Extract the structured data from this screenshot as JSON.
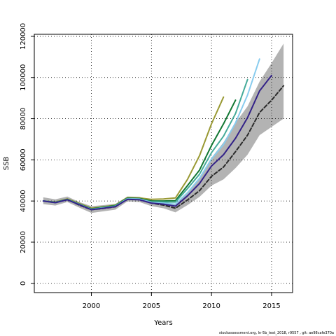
{
  "chart_data": {
    "type": "line",
    "xlabel": "Years",
    "ylabel": "SSB",
    "xlim": [
      1995.25,
      2016.75
    ],
    "ylim": [
      -4500,
      121000
    ],
    "x_ticks": [
      2000,
      2005,
      2010,
      2015
    ],
    "y_ticks": [
      0,
      20000,
      40000,
      60000,
      80000,
      100000,
      120000
    ],
    "x_tick_labels": [
      "2000",
      "2005",
      "2010",
      "2015"
    ],
    "y_tick_labels": [
      "0",
      "20000",
      "40000",
      "60000",
      "80000",
      "100000",
      "120000"
    ],
    "grid": true,
    "band": {
      "color": "#b3b3b3",
      "x": [
        1996,
        1997,
        1998,
        1999,
        2000,
        2001,
        2002,
        2003,
        2004,
        2005,
        2006,
        2007,
        2008,
        2009,
        2010,
        2011,
        2012,
        2013,
        2014,
        2015,
        2016
      ],
      "lower": [
        38500,
        37800,
        39500,
        36800,
        34200,
        35000,
        35800,
        39800,
        39500,
        37500,
        36500,
        34500,
        38000,
        42000,
        47500,
        50500,
        56000,
        62500,
        72000,
        76000,
        80000
      ],
      "upper": [
        41800,
        40800,
        42200,
        39500,
        37500,
        38000,
        38600,
        42200,
        42000,
        40500,
        39500,
        38500,
        44000,
        51500,
        61000,
        68500,
        78000,
        86000,
        98000,
        107000,
        116500
      ]
    },
    "series": [
      {
        "color": "#2a2a2a",
        "dash": true,
        "x": [
          1996,
          1997,
          1998,
          1999,
          2000,
          2001,
          2002,
          2003,
          2004,
          2005,
          2006,
          2007,
          2008,
          2009,
          2010,
          2011,
          2012,
          2013,
          2014,
          2015,
          2016
        ],
        "values": [
          40000,
          39200,
          40800,
          38000,
          35800,
          36400,
          37200,
          41000,
          40700,
          39000,
          38000,
          36500,
          40500,
          45000,
          52000,
          56500,
          64000,
          72000,
          83000,
          89000,
          96000
        ]
      },
      {
        "color": "#999933",
        "x": [
          1996,
          1997,
          1998,
          1999,
          2000,
          2001,
          2002,
          2003,
          2004,
          2005,
          2006,
          2007,
          2008,
          2009,
          2010,
          2011
        ],
        "values": [
          40000,
          39500,
          41000,
          38800,
          36500,
          37200,
          38000,
          41700,
          41500,
          40800,
          41000,
          41500,
          50500,
          62000,
          77500,
          90500
        ]
      },
      {
        "color": "#117733",
        "x": [
          1996,
          1997,
          1998,
          1999,
          2000,
          2001,
          2002,
          2003,
          2004,
          2005,
          2006,
          2007,
          2008,
          2009,
          2010,
          2011,
          2012
        ],
        "values": [
          40000,
          39400,
          40800,
          38500,
          36200,
          37000,
          37800,
          41400,
          41200,
          40000,
          40000,
          40200,
          47500,
          55000,
          67000,
          77500,
          89000
        ]
      },
      {
        "color": "#44aa99",
        "x": [
          1996,
          1997,
          1998,
          1999,
          2000,
          2001,
          2002,
          2003,
          2004,
          2005,
          2006,
          2007,
          2008,
          2009,
          2010,
          2011,
          2012,
          2013
        ],
        "values": [
          40000,
          39300,
          40700,
          38400,
          36000,
          36800,
          37600,
          41200,
          41000,
          39600,
          39500,
          39500,
          46000,
          53000,
          63500,
          71500,
          82500,
          99000
        ]
      },
      {
        "color": "#88ccee",
        "x": [
          1996,
          1997,
          1998,
          1999,
          2000,
          2001,
          2002,
          2003,
          2004,
          2005,
          2006,
          2007,
          2008,
          2009,
          2010,
          2011,
          2012,
          2013,
          2014
        ],
        "values": [
          40000,
          39200,
          40600,
          38300,
          35900,
          36600,
          37400,
          41000,
          40900,
          39300,
          39000,
          38500,
          44000,
          51000,
          60500,
          67500,
          78000,
          91500,
          109000
        ]
      },
      {
        "color": "#332288",
        "x": [
          1996,
          1997,
          1998,
          1999,
          2000,
          2001,
          2002,
          2003,
          2004,
          2005,
          2006,
          2007,
          2008,
          2009,
          2010,
          2011,
          2012,
          2013,
          2014,
          2015
        ],
        "values": [
          40000,
          39200,
          40600,
          38200,
          35800,
          36500,
          37300,
          40800,
          40600,
          39000,
          38500,
          37500,
          42500,
          48500,
          57000,
          62500,
          70500,
          80500,
          93500,
          101000
        ]
      }
    ]
  },
  "footnote": "stockassessment.org, ln-5b_test_2018, r9557 , git: ae98cafe370a"
}
